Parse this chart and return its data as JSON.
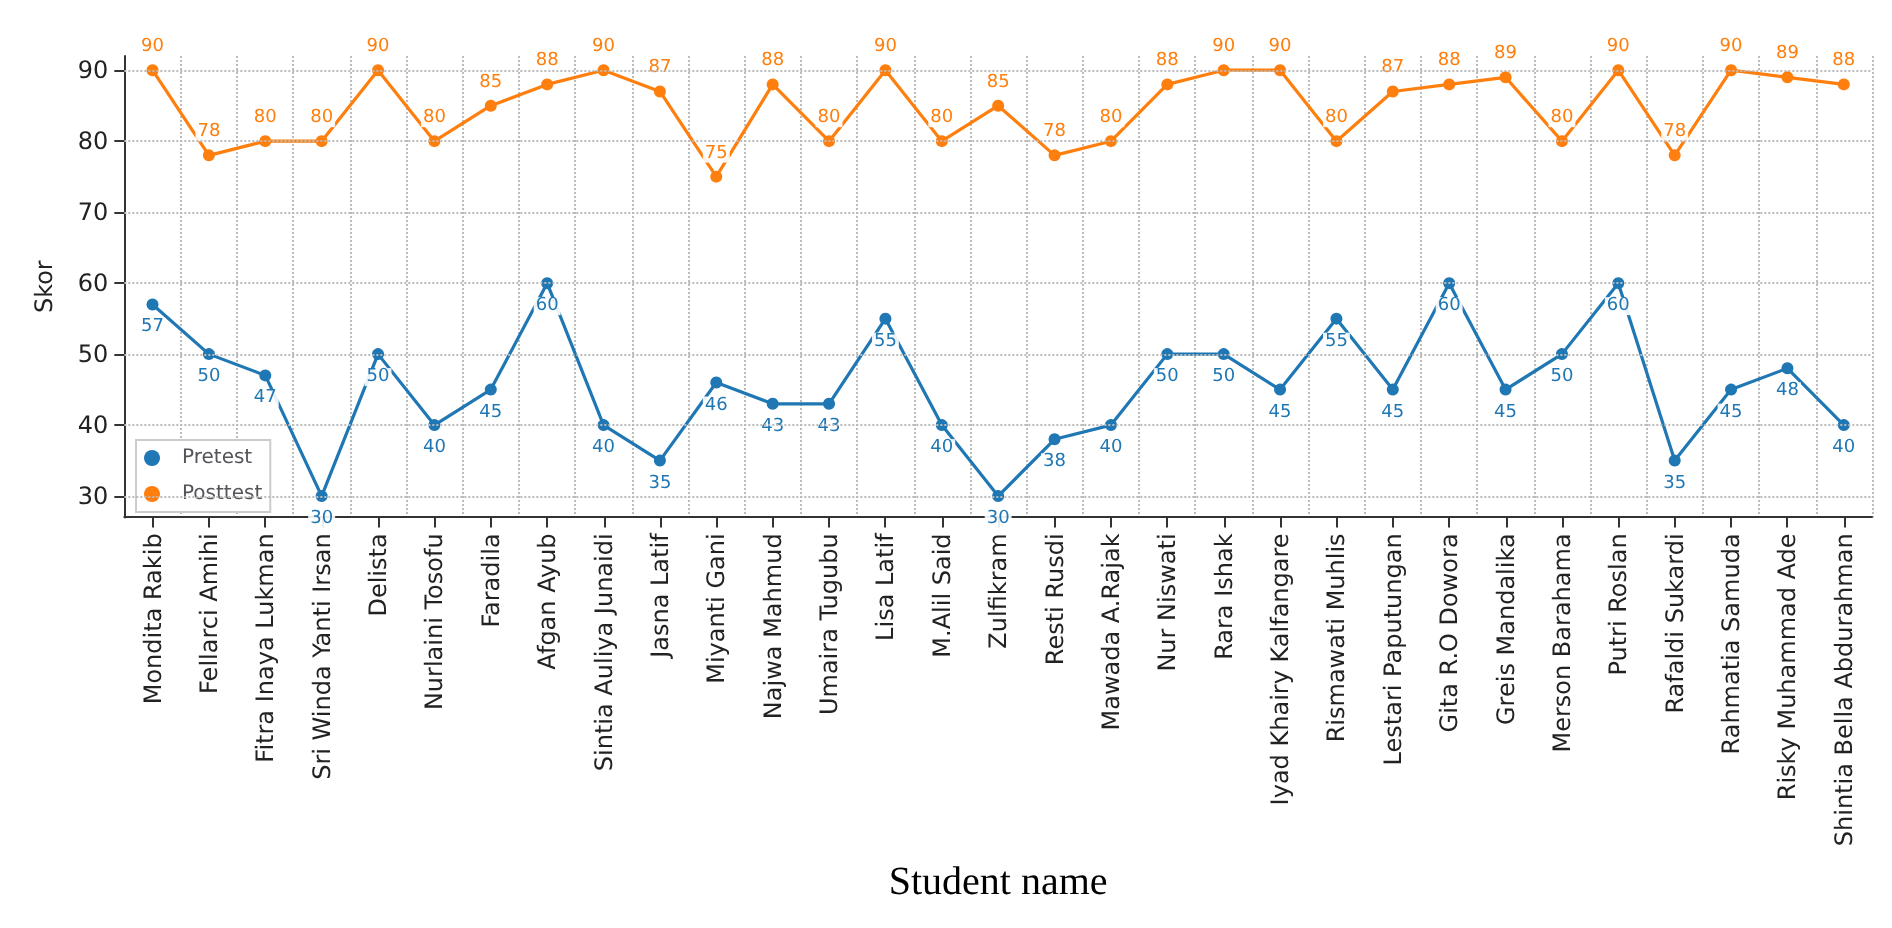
{
  "chart_data": {
    "type": "line",
    "xlabel": "Student name",
    "ylabel": "Skor",
    "categories": [
      "Mondita Rakib",
      "Fellarci Amihi",
      "Fitra Inaya Lukman",
      "Sri Winda Yanti Irsan",
      "Delista",
      "Nurlaini Tosofu",
      "Faradila",
      "Afgan Ayub",
      "Sintia Auliya Junaidi",
      "Jasna Latif",
      "Miyanti Gani",
      "Najwa Mahmud",
      "Umaira Tugubu",
      "Lisa Latif",
      "M.Alil Said",
      "Zulfikram",
      "Resti Rusdi",
      "Mawada A.Rajak",
      "Nur Niswati",
      "Rara Ishak",
      "Iyad Khairy Kalfangare",
      "Rismawati Muhlis",
      "Lestari Paputungan",
      "Gita R.O Dowora",
      "Greis Mandalika",
      "Merson Barahama",
      "Putri Roslan",
      "Rafaldi Sukardi",
      "Rahmatia Samuda",
      "Risky Muhammad Ade",
      "Shintia Bella Abdurahman"
    ],
    "series": [
      {
        "name": "Pretest",
        "color": "#1f77b4",
        "values": [
          57,
          50,
          47,
          30,
          50,
          40,
          45,
          60,
          40,
          35,
          46,
          43,
          43,
          55,
          40,
          30,
          38,
          40,
          50,
          50,
          45,
          55,
          45,
          60,
          45,
          50,
          60,
          35,
          45,
          48,
          40
        ]
      },
      {
        "name": "Posttest",
        "color": "#ff7f0e",
        "values": [
          90,
          78,
          80,
          80,
          90,
          80,
          85,
          88,
          90,
          87,
          75,
          88,
          80,
          90,
          80,
          85,
          78,
          80,
          88,
          90,
          90,
          80,
          87,
          88,
          89,
          80,
          90,
          78,
          90,
          89,
          88
        ]
      }
    ],
    "ylim": [
      27,
      92
    ],
    "yticks": [
      30,
      40,
      50,
      60,
      70,
      80,
      90
    ],
    "grid": true,
    "legend": "bottom left",
    "marker": "circle",
    "line_style": "solid",
    "data_labels": true
  }
}
